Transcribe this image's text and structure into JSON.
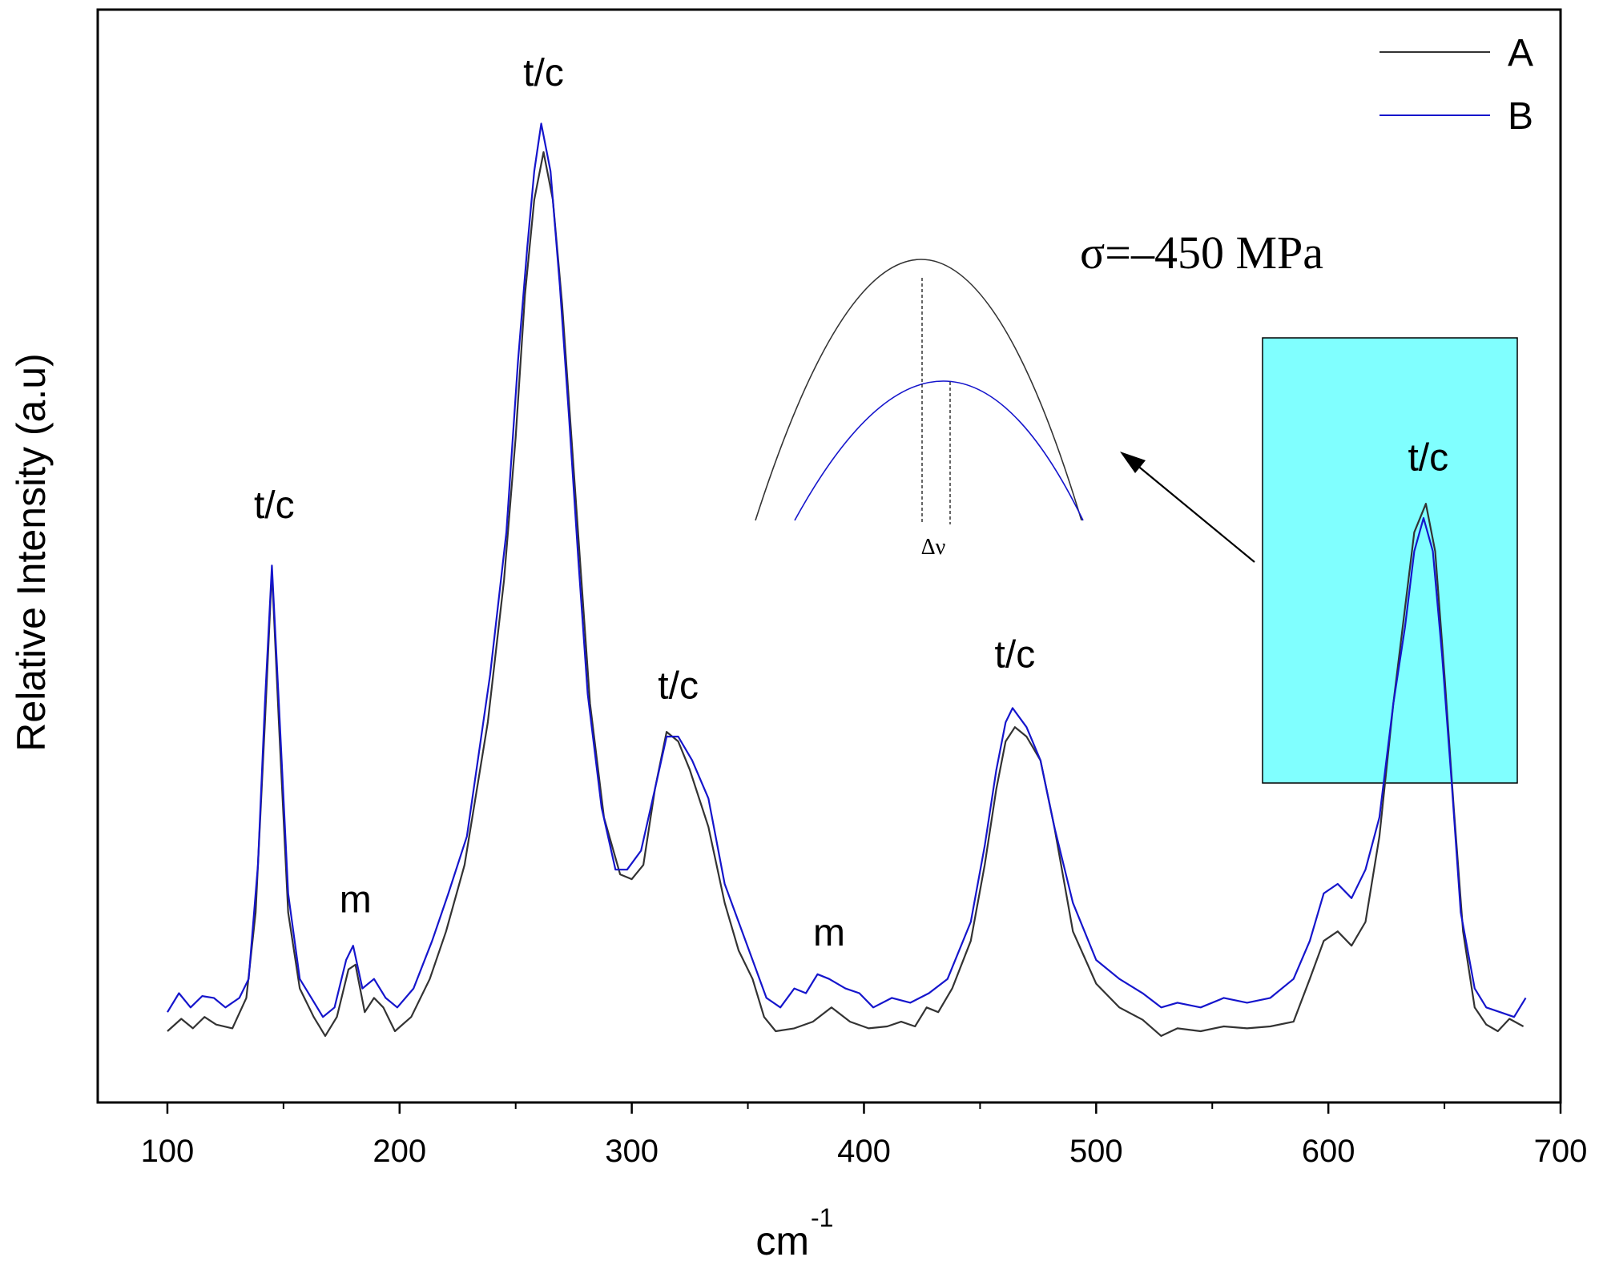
{
  "chart_data": {
    "type": "line",
    "xlabel": "cm",
    "xlabel_sup": "-1",
    "ylabel": "Relative Intensity (a.u)",
    "xlim": [
      70,
      700
    ],
    "xticks": [
      100,
      200,
      300,
      400,
      500,
      600,
      700
    ],
    "xticks_minor": [
      150,
      250,
      350,
      450,
      550,
      650
    ],
    "ylim": [
      0,
      1.15
    ],
    "grid": false,
    "legend_position": "top-right",
    "series": [
      {
        "name": "A",
        "color": "#333333",
        "points": [
          [
            100,
            0.075
          ],
          [
            106,
            0.088
          ],
          [
            111,
            0.078
          ],
          [
            116,
            0.09
          ],
          [
            121,
            0.082
          ],
          [
            128,
            0.078
          ],
          [
            134,
            0.11
          ],
          [
            138,
            0.2
          ],
          [
            142,
            0.4
          ],
          [
            145,
            0.56
          ],
          [
            148,
            0.4
          ],
          [
            152,
            0.2
          ],
          [
            157,
            0.12
          ],
          [
            163,
            0.09
          ],
          [
            168,
            0.07
          ],
          [
            173,
            0.09
          ],
          [
            178,
            0.14
          ],
          [
            181,
            0.145
          ],
          [
            185,
            0.095
          ],
          [
            189,
            0.11
          ],
          [
            193,
            0.1
          ],
          [
            198,
            0.075
          ],
          [
            205,
            0.09
          ],
          [
            213,
            0.13
          ],
          [
            220,
            0.18
          ],
          [
            228,
            0.25
          ],
          [
            238,
            0.4
          ],
          [
            245,
            0.55
          ],
          [
            250,
            0.7
          ],
          [
            254,
            0.85
          ],
          [
            258,
            0.95
          ],
          [
            262,
            1.0
          ],
          [
            266,
            0.95
          ],
          [
            270,
            0.84
          ],
          [
            274,
            0.7
          ],
          [
            278,
            0.56
          ],
          [
            282,
            0.42
          ],
          [
            288,
            0.3
          ],
          [
            295,
            0.24
          ],
          [
            300,
            0.235
          ],
          [
            305,
            0.25
          ],
          [
            310,
            0.33
          ],
          [
            315,
            0.39
          ],
          [
            320,
            0.38
          ],
          [
            325,
            0.35
          ],
          [
            333,
            0.29
          ],
          [
            340,
            0.21
          ],
          [
            346,
            0.16
          ],
          [
            352,
            0.13
          ],
          [
            357,
            0.09
          ],
          [
            362,
            0.075
          ],
          [
            370,
            0.078
          ],
          [
            378,
            0.085
          ],
          [
            386,
            0.1
          ],
          [
            394,
            0.085
          ],
          [
            402,
            0.078
          ],
          [
            410,
            0.08
          ],
          [
            416,
            0.085
          ],
          [
            422,
            0.08
          ],
          [
            427,
            0.1
          ],
          [
            432,
            0.095
          ],
          [
            438,
            0.12
          ],
          [
            446,
            0.17
          ],
          [
            452,
            0.25
          ],
          [
            457,
            0.33
          ],
          [
            461,
            0.38
          ],
          [
            465,
            0.395
          ],
          [
            470,
            0.385
          ],
          [
            476,
            0.36
          ],
          [
            482,
            0.29
          ],
          [
            490,
            0.18
          ],
          [
            500,
            0.125
          ],
          [
            510,
            0.1
          ],
          [
            520,
            0.087
          ],
          [
            528,
            0.07
          ],
          [
            535,
            0.078
          ],
          [
            545,
            0.075
          ],
          [
            555,
            0.08
          ],
          [
            565,
            0.078
          ],
          [
            575,
            0.08
          ],
          [
            585,
            0.085
          ],
          [
            592,
            0.13
          ],
          [
            598,
            0.17
          ],
          [
            604,
            0.18
          ],
          [
            610,
            0.165
          ],
          [
            616,
            0.19
          ],
          [
            622,
            0.28
          ],
          [
            628,
            0.42
          ],
          [
            633,
            0.52
          ],
          [
            637,
            0.6
          ],
          [
            642,
            0.63
          ],
          [
            646,
            0.58
          ],
          [
            650,
            0.45
          ],
          [
            654,
            0.31
          ],
          [
            658,
            0.18
          ],
          [
            663,
            0.1
          ],
          [
            668,
            0.082
          ],
          [
            673,
            0.075
          ],
          [
            678,
            0.088
          ],
          [
            684,
            0.08
          ]
        ]
      },
      {
        "name": "B",
        "color": "#1515cc",
        "points": [
          [
            100,
            0.095
          ],
          [
            105,
            0.115
          ],
          [
            110,
            0.1
          ],
          [
            115,
            0.112
          ],
          [
            120,
            0.11
          ],
          [
            125,
            0.1
          ],
          [
            131,
            0.11
          ],
          [
            135,
            0.13
          ],
          [
            139,
            0.25
          ],
          [
            142,
            0.42
          ],
          [
            145,
            0.565
          ],
          [
            148,
            0.42
          ],
          [
            152,
            0.22
          ],
          [
            157,
            0.13
          ],
          [
            162,
            0.11
          ],
          [
            167,
            0.09
          ],
          [
            172,
            0.1
          ],
          [
            177,
            0.15
          ],
          [
            180,
            0.165
          ],
          [
            184,
            0.12
          ],
          [
            189,
            0.13
          ],
          [
            194,
            0.11
          ],
          [
            199,
            0.1
          ],
          [
            206,
            0.12
          ],
          [
            214,
            0.17
          ],
          [
            221,
            0.22
          ],
          [
            229,
            0.28
          ],
          [
            239,
            0.45
          ],
          [
            246,
            0.6
          ],
          [
            251,
            0.78
          ],
          [
            255,
            0.9
          ],
          [
            258,
            0.98
          ],
          [
            261,
            1.03
          ],
          [
            265,
            0.98
          ],
          [
            269,
            0.86
          ],
          [
            273,
            0.72
          ],
          [
            277,
            0.57
          ],
          [
            281,
            0.43
          ],
          [
            287,
            0.31
          ],
          [
            293,
            0.245
          ],
          [
            298,
            0.245
          ],
          [
            304,
            0.265
          ],
          [
            310,
            0.33
          ],
          [
            315,
            0.385
          ],
          [
            320,
            0.385
          ],
          [
            326,
            0.36
          ],
          [
            333,
            0.32
          ],
          [
            340,
            0.23
          ],
          [
            346,
            0.19
          ],
          [
            352,
            0.15
          ],
          [
            358,
            0.11
          ],
          [
            364,
            0.1
          ],
          [
            370,
            0.12
          ],
          [
            375,
            0.115
          ],
          [
            380,
            0.135
          ],
          [
            385,
            0.13
          ],
          [
            392,
            0.12
          ],
          [
            398,
            0.115
          ],
          [
            404,
            0.1
          ],
          [
            412,
            0.11
          ],
          [
            420,
            0.105
          ],
          [
            428,
            0.115
          ],
          [
            436,
            0.13
          ],
          [
            446,
            0.19
          ],
          [
            452,
            0.27
          ],
          [
            457,
            0.35
          ],
          [
            461,
            0.4
          ],
          [
            464,
            0.415
          ],
          [
            470,
            0.395
          ],
          [
            476,
            0.36
          ],
          [
            482,
            0.29
          ],
          [
            490,
            0.21
          ],
          [
            500,
            0.15
          ],
          [
            510,
            0.13
          ],
          [
            520,
            0.115
          ],
          [
            528,
            0.1
          ],
          [
            535,
            0.105
          ],
          [
            545,
            0.1
          ],
          [
            555,
            0.11
          ],
          [
            565,
            0.105
          ],
          [
            575,
            0.11
          ],
          [
            585,
            0.13
          ],
          [
            592,
            0.17
          ],
          [
            598,
            0.22
          ],
          [
            604,
            0.23
          ],
          [
            610,
            0.215
          ],
          [
            616,
            0.245
          ],
          [
            622,
            0.3
          ],
          [
            628,
            0.42
          ],
          [
            633,
            0.5
          ],
          [
            637,
            0.58
          ],
          [
            641,
            0.615
          ],
          [
            645,
            0.58
          ],
          [
            649,
            0.47
          ],
          [
            653,
            0.34
          ],
          [
            657,
            0.2
          ],
          [
            663,
            0.12
          ],
          [
            668,
            0.1
          ],
          [
            674,
            0.095
          ],
          [
            680,
            0.09
          ],
          [
            685,
            0.11
          ]
        ]
      }
    ],
    "peak_labels": [
      {
        "text": "t/c",
        "x": 146,
        "y": 0.615
      },
      {
        "text": "m",
        "x": 181,
        "y": 0.2
      },
      {
        "text": "t/c",
        "x": 262,
        "y": 1.07
      },
      {
        "text": "t/c",
        "x": 320,
        "y": 0.425
      },
      {
        "text": "m",
        "x": 385,
        "y": 0.165
      },
      {
        "text": "t/c",
        "x": 465,
        "y": 0.458
      },
      {
        "text": "t/c",
        "x": 643,
        "y": 0.665
      }
    ],
    "annotation": "σ=–450 MPa",
    "inset_label": "Δν"
  },
  "colors": {
    "highlight_box": "#80ffff",
    "series_A": "#333333",
    "series_B": "#1515cc"
  }
}
